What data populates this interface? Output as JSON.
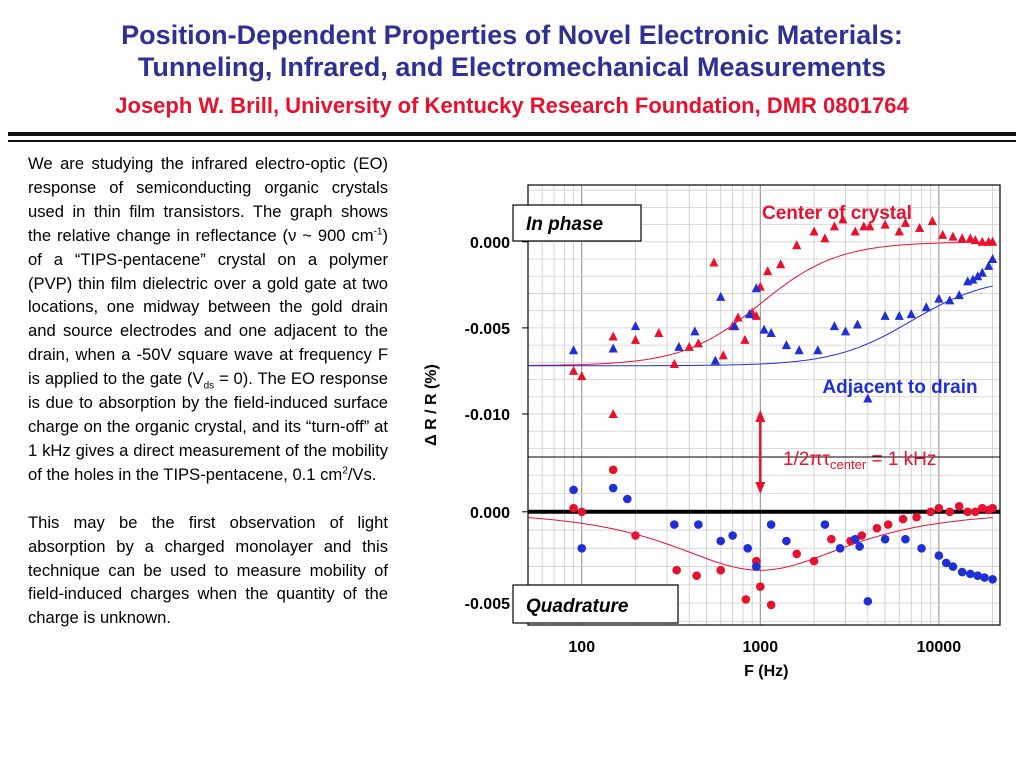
{
  "title": {
    "line1": "Position-Dependent Properties of Novel Electronic Materials:",
    "line2": "Tunneling, Infrared, and Electromechanical Measurements",
    "author": "Joseph W. Brill, University of Kentucky Research Foundation, DMR 0801764"
  },
  "body": {
    "p1_a": "We are studying the infrared electro-optic (EO) response of semiconducting organic crystals used in thin film transistors.  The graph shows the relative change in reflectance (ν ~ 900 cm",
    "p1_sup1": "-1",
    "p1_b": ") of a “TIPS-pentacene” crystal on a polymer (PVP) thin film dielectric over a gold gate at two locations, one midway between the gold drain and source electrodes and one adjacent to the drain, when a -50V square wave at frequency F is applied to the gate (V",
    "p1_sub": "ds",
    "p1_c": " = 0).  The EO response is due to absorption by the field-induced surface charge on the organic crystal, and its “turn-off” at 1 kHz gives a direct measurement of the mobility of the holes in the TIPS-pentacene, 0.1 cm",
    "p1_sup2": "2",
    "p1_d": "/Vs.",
    "p2": "This may be the first observation of light absorption by a charged monolayer and this technique can be used to measure mobility of field-induced charges when the quantity of the charge is unknown."
  },
  "chart_data": {
    "type": "scatter",
    "x_scale": "log",
    "xlabel": "F (Hz)",
    "ylabel": "Δ R / R  (%)",
    "xlim": [
      50,
      22000
    ],
    "x_ticks": [
      100,
      1000,
      10000
    ],
    "x_tick_labels": [
      "100",
      "1000",
      "10000"
    ],
    "grid": true,
    "colors": {
      "center": "#e8112d",
      "drain": "#1f2fd6",
      "axis": "#000000"
    },
    "labels": {
      "center": "Center of crystal",
      "drain": "Adjacent to drain",
      "marker_main": "1/2πτ",
      "marker_sub": "center",
      "marker_tail": " = 1 kHz"
    },
    "marker_frequency": 1000,
    "panels": [
      {
        "name": "In phase",
        "ylim": [
          0.0033,
          -0.0125
        ],
        "y_ticks": [
          0.0,
          -0.005,
          -0.01
        ],
        "y_tick_labels": [
          "0.000",
          "-0.005",
          "-0.010"
        ],
        "series": [
          {
            "key": "center",
            "marker": "triangle",
            "points": [
              [
                90,
                -0.0075
              ],
              [
                100,
                -0.0078
              ],
              [
                150,
                -0.01
              ],
              [
                150,
                -0.0055
              ],
              [
                200,
                -0.0057
              ],
              [
                270,
                -0.0053
              ],
              [
                330,
                -0.0071
              ],
              [
                400,
                -0.0061
              ],
              [
                450,
                -0.0059
              ],
              [
                550,
                -0.0012
              ],
              [
                620,
                -0.0066
              ],
              [
                700,
                -0.0049
              ],
              [
                750,
                -0.0044
              ],
              [
                820,
                -0.0057
              ],
              [
                900,
                -0.0041
              ],
              [
                950,
                -0.0043
              ],
              [
                1000,
                -0.0026
              ],
              [
                1100,
                -0.0017
              ],
              [
                1300,
                -0.0013
              ],
              [
                1600,
                -0.0002
              ],
              [
                2000,
                0.0006
              ],
              [
                2300,
                0.0002
              ],
              [
                2600,
                0.0009
              ],
              [
                2900,
                0.0013
              ],
              [
                3400,
                0.0006
              ],
              [
                3800,
                0.0009
              ],
              [
                4100,
                0.0009
              ],
              [
                5000,
                0.001
              ],
              [
                6000,
                0.0006
              ],
              [
                6500,
                0.0011
              ],
              [
                7800,
                0.0008
              ],
              [
                9200,
                0.0012
              ],
              [
                10500,
                0.0004
              ],
              [
                12000,
                0.0003
              ],
              [
                13500,
                0.0002
              ],
              [
                15000,
                0.0002
              ],
              [
                16000,
                0.0001
              ],
              [
                17500,
                0.0
              ],
              [
                19000,
                0.0
              ],
              [
                20000,
                0.0
              ]
            ]
          },
          {
            "key": "drain",
            "marker": "triangle",
            "points": [
              [
                90,
                -0.0063
              ],
              [
                150,
                -0.0062
              ],
              [
                200,
                -0.0049
              ],
              [
                350,
                -0.0061
              ],
              [
                430,
                -0.0052
              ],
              [
                560,
                -0.0069
              ],
              [
                600,
                -0.0032
              ],
              [
                720,
                -0.0049
              ],
              [
                870,
                -0.0042
              ],
              [
                950,
                -0.0027
              ],
              [
                1050,
                -0.0051
              ],
              [
                1150,
                -0.0053
              ],
              [
                1400,
                -0.006
              ],
              [
                1650,
                -0.0063
              ],
              [
                2100,
                -0.0063
              ],
              [
                2600,
                -0.0049
              ],
              [
                3000,
                -0.0052
              ],
              [
                3500,
                -0.0048
              ],
              [
                4000,
                -0.0091
              ],
              [
                5000,
                -0.0043
              ],
              [
                6000,
                -0.0043
              ],
              [
                7000,
                -0.0042
              ],
              [
                8500,
                -0.0038
              ],
              [
                10000,
                -0.0033
              ],
              [
                11500,
                -0.0034
              ],
              [
                13000,
                -0.0031
              ],
              [
                14500,
                -0.0023
              ],
              [
                15500,
                -0.0022
              ],
              [
                16500,
                -0.002
              ],
              [
                17500,
                -0.0018
              ],
              [
                19000,
                -0.0014
              ],
              [
                20000,
                -0.001
              ]
            ]
          }
        ],
        "fits": [
          {
            "key": "center",
            "low": -0.0072,
            "high": 0.0,
            "fc": 1000,
            "xlim": [
              50,
              20000
            ]
          },
          {
            "key": "drain",
            "low": -0.0072,
            "high": -0.002,
            "fc": 7000,
            "xlim": [
              50,
              20000
            ]
          }
        ]
      },
      {
        "name": "Quadrature",
        "ylim": [
          0.003,
          -0.0062
        ],
        "y_ticks": [
          0.0,
          -0.005
        ],
        "y_tick_labels": [
          "0.000",
          "-0.005"
        ],
        "series": [
          {
            "key": "center",
            "marker": "circle",
            "points": [
              [
                90,
                0.0002
              ],
              [
                100,
                0.0
              ],
              [
                150,
                0.0023
              ],
              [
                200,
                -0.0013
              ],
              [
                340,
                -0.0032
              ],
              [
                440,
                -0.0035
              ],
              [
                600,
                -0.0032
              ],
              [
                830,
                -0.0048
              ],
              [
                950,
                -0.0027
              ],
              [
                1000,
                -0.0041
              ],
              [
                1150,
                -0.0051
              ],
              [
                1600,
                -0.0023
              ],
              [
                2000,
                -0.0027
              ],
              [
                2500,
                -0.0015
              ],
              [
                3200,
                -0.0016
              ],
              [
                3700,
                -0.0013
              ],
              [
                4500,
                -0.0009
              ],
              [
                5200,
                -0.0007
              ],
              [
                6300,
                -0.0004
              ],
              [
                7500,
                -0.0003
              ],
              [
                9000,
                0.0
              ],
              [
                10000,
                0.0002
              ],
              [
                11500,
                0.0
              ],
              [
                13000,
                0.0003
              ],
              [
                14500,
                0.0
              ],
              [
                16000,
                0.0
              ],
              [
                17500,
                0.0002
              ],
              [
                19000,
                0.0001
              ],
              [
                20000,
                0.0002
              ]
            ]
          },
          {
            "key": "drain",
            "marker": "circle",
            "points": [
              [
                90,
                0.0012
              ],
              [
                100,
                -0.002
              ],
              [
                150,
                0.0013
              ],
              [
                180,
                0.0007
              ],
              [
                330,
                -0.0007
              ],
              [
                450,
                -0.0007
              ],
              [
                600,
                -0.0016
              ],
              [
                700,
                -0.0013
              ],
              [
                850,
                -0.002
              ],
              [
                950,
                -0.003
              ],
              [
                1150,
                -0.0007
              ],
              [
                1400,
                -0.0016
              ],
              [
                2300,
                -0.0007
              ],
              [
                2800,
                -0.002
              ],
              [
                3400,
                -0.0015
              ],
              [
                3600,
                -0.0019
              ],
              [
                4000,
                -0.0049
              ],
              [
                5000,
                -0.0015
              ],
              [
                6500,
                -0.0015
              ],
              [
                8000,
                -0.002
              ],
              [
                10000,
                -0.0024
              ],
              [
                11000,
                -0.0028
              ],
              [
                12000,
                -0.003
              ],
              [
                13500,
                -0.0033
              ],
              [
                15000,
                -0.0034
              ],
              [
                16500,
                -0.0035
              ],
              [
                18000,
                -0.0036
              ],
              [
                20000,
                -0.0037
              ]
            ]
          }
        ],
        "fits": [
          {
            "key": "center",
            "model": "quadrature",
            "amp": -0.0032,
            "fc": 1000,
            "base": 0.0,
            "xlim": [
              50,
              20000
            ]
          }
        ],
        "zero_line": 0.0
      }
    ]
  }
}
